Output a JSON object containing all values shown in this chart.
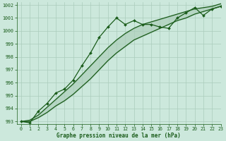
{
  "background_color": "#cce8dc",
  "grid_color": "#aaccbb",
  "line_color": "#1a5c1a",
  "title": "Graphe pression niveau de la mer (hPa)",
  "xlim": [
    -0.5,
    23
  ],
  "ylim": [
    992.8,
    1002.2
  ],
  "xticks": [
    0,
    1,
    2,
    3,
    4,
    5,
    6,
    7,
    8,
    9,
    10,
    11,
    12,
    13,
    14,
    15,
    16,
    17,
    18,
    19,
    20,
    21,
    22,
    23
  ],
  "yticks": [
    993,
    994,
    995,
    996,
    997,
    998,
    999,
    1000,
    1001,
    1002
  ],
  "series1_x": [
    0,
    1,
    2,
    3,
    4,
    5,
    6,
    7,
    8,
    9,
    10,
    11,
    12,
    13,
    14,
    15,
    16,
    17,
    18,
    19,
    20,
    21,
    22,
    23
  ],
  "series1_y": [
    993.0,
    992.9,
    993.8,
    994.4,
    995.2,
    995.5,
    996.2,
    997.3,
    998.3,
    999.5,
    1000.3,
    1001.0,
    1000.5,
    1000.8,
    1000.5,
    1000.5,
    1000.3,
    1000.2,
    1001.0,
    1001.4,
    1001.8,
    1001.2,
    1001.7,
    1001.9
  ],
  "series2_x": [
    0,
    1,
    2,
    3,
    4,
    5,
    6,
    7,
    8,
    9,
    10,
    11,
    12,
    13,
    14,
    15,
    16,
    17,
    18,
    19,
    20,
    21,
    22,
    23
  ],
  "series2_y": [
    993.0,
    993.1,
    993.5,
    994.1,
    994.7,
    995.3,
    995.9,
    996.6,
    997.3,
    998.0,
    998.7,
    999.3,
    999.8,
    1000.2,
    1000.5,
    1000.7,
    1000.9,
    1001.1,
    1001.3,
    1001.5,
    1001.7,
    1001.8,
    1001.9,
    1002.1
  ],
  "series3_x": [
    0,
    1,
    2,
    3,
    4,
    5,
    6,
    7,
    8,
    9,
    10,
    11,
    12,
    13,
    14,
    15,
    16,
    17,
    18,
    19,
    20,
    21,
    22,
    23
  ],
  "series3_y": [
    993.0,
    993.0,
    993.3,
    993.7,
    994.2,
    994.6,
    995.1,
    995.7,
    996.3,
    997.0,
    997.7,
    998.3,
    998.8,
    999.3,
    999.6,
    999.9,
    1000.2,
    1000.5,
    1000.8,
    1001.0,
    1001.3,
    1001.5,
    1001.7,
    1001.9
  ],
  "marker": "D",
  "markersize": 2.0,
  "linewidth": 0.9,
  "title_fontsize": 5.5,
  "tick_fontsize": 4.8
}
